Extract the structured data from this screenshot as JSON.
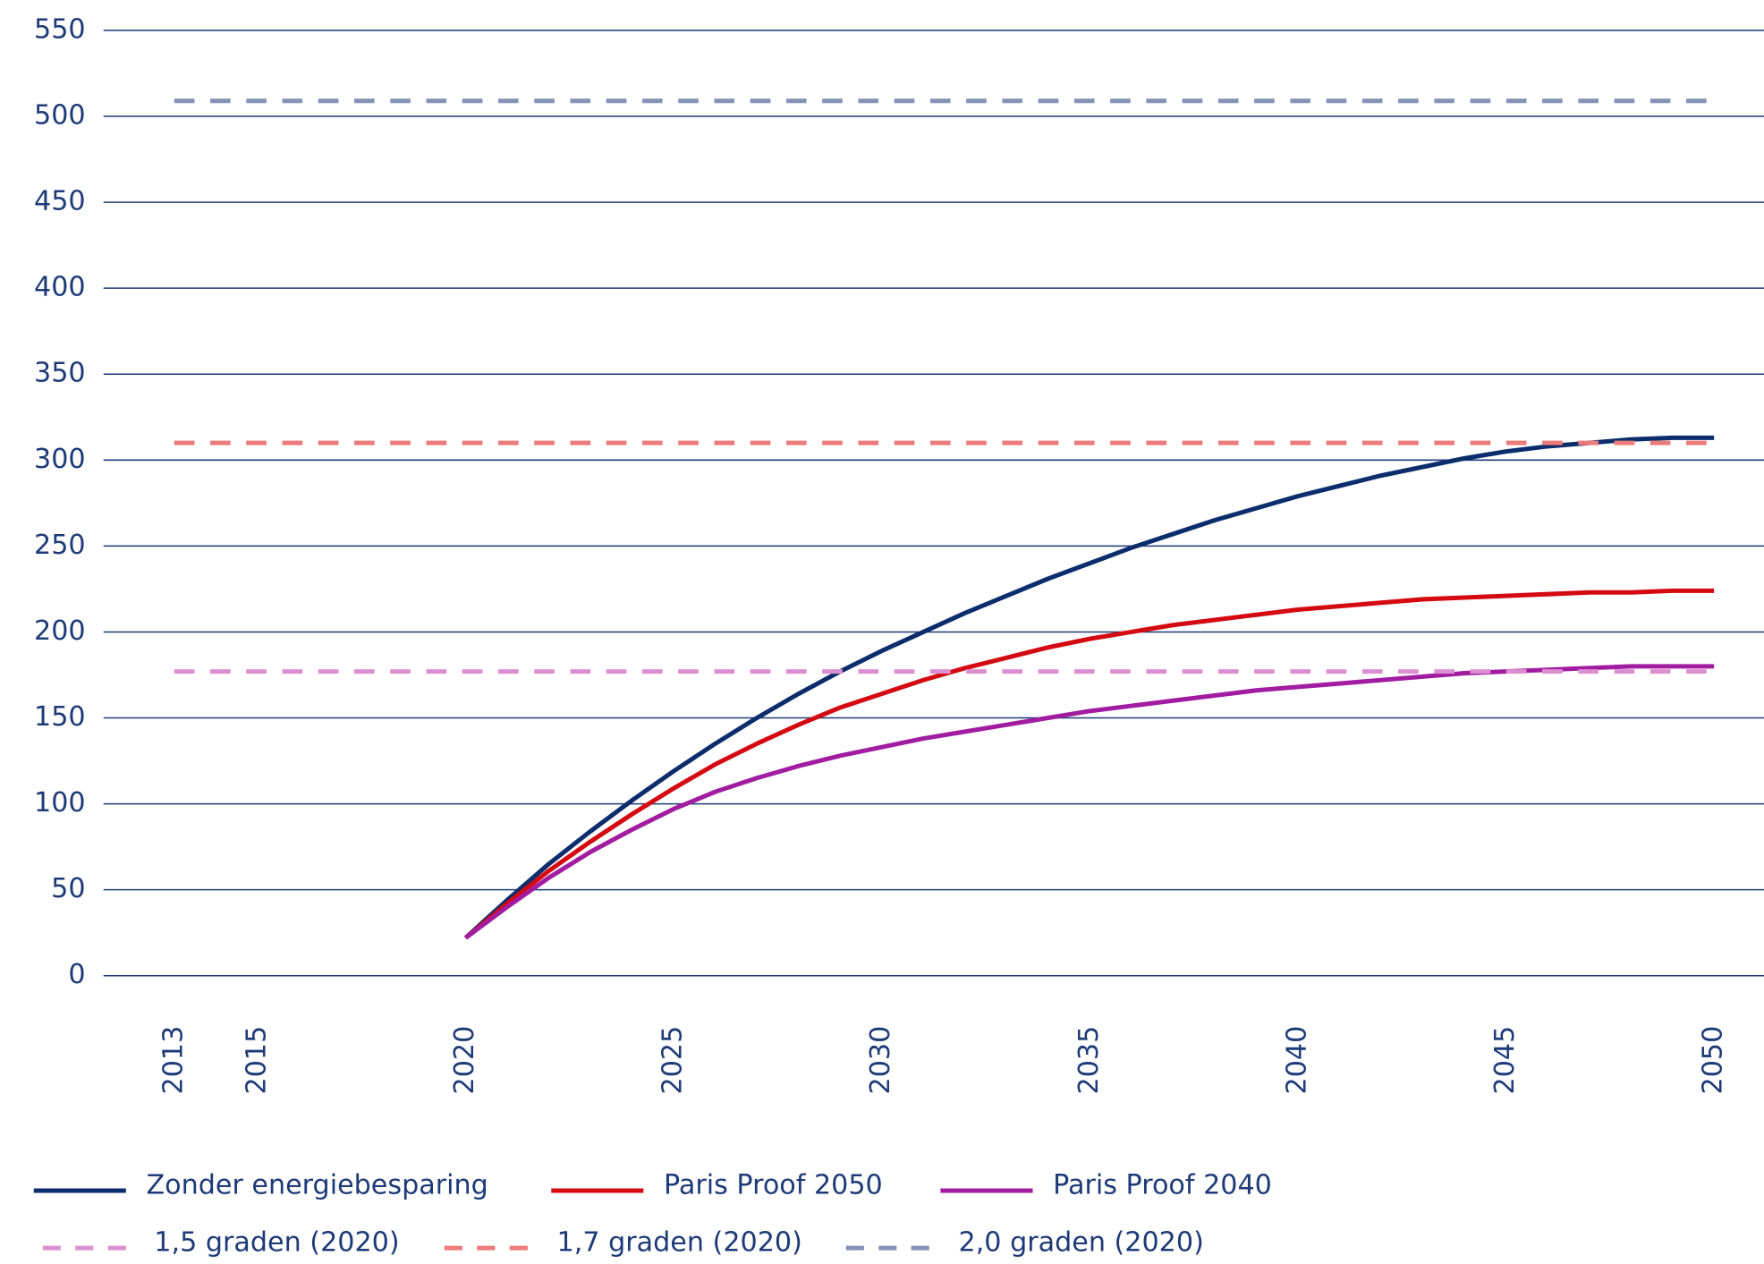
{
  "chart_data": {
    "type": "line",
    "xlim": [
      2011.3,
      2051.2
    ],
    "xticks": [
      2013,
      2015,
      2020,
      2025,
      2030,
      2035,
      2040,
      2045,
      2050
    ],
    "ylim": [
      0,
      550
    ],
    "yticks": [
      0,
      50,
      100,
      150,
      200,
      250,
      300,
      350,
      400,
      450,
      500,
      550
    ],
    "grid": true,
    "series": [
      {
        "name": "Zonder energiebesparing",
        "color": "#0b2d6c",
        "dashed": false,
        "x": [
          2020,
          2021,
          2022,
          2023,
          2024,
          2025,
          2026,
          2027,
          2028,
          2029,
          2030,
          2031,
          2032,
          2033,
          2034,
          2035,
          2036,
          2037,
          2038,
          2039,
          2040,
          2041,
          2042,
          2043,
          2044,
          2045,
          2046,
          2047,
          2048,
          2049,
          2050
        ],
        "values": [
          22,
          44,
          65,
          84,
          102,
          119,
          135,
          150,
          164,
          177,
          189,
          200,
          211,
          221,
          231,
          240,
          249,
          257,
          265,
          272,
          279,
          285,
          291,
          296,
          301,
          305,
          308,
          310,
          312,
          313,
          313
        ]
      },
      {
        "name": "Paris Proof 2050",
        "color": "#d40a10",
        "dashed": false,
        "x": [
          2020,
          2021,
          2022,
          2023,
          2024,
          2025,
          2026,
          2027,
          2028,
          2029,
          2030,
          2031,
          2032,
          2033,
          2034,
          2035,
          2036,
          2037,
          2038,
          2039,
          2040,
          2041,
          2042,
          2043,
          2044,
          2045,
          2046,
          2047,
          2048,
          2049,
          2050
        ],
        "values": [
          22,
          42,
          61,
          78,
          94,
          109,
          123,
          135,
          146,
          156,
          164,
          172,
          179,
          185,
          191,
          196,
          200,
          204,
          207,
          210,
          213,
          215,
          217,
          219,
          220,
          221,
          222,
          223,
          223,
          224,
          224
        ]
      },
      {
        "name": "Paris Proof 2040",
        "color": "#a21ca2",
        "dashed": false,
        "x": [
          2020,
          2021,
          2022,
          2023,
          2024,
          2025,
          2026,
          2027,
          2028,
          2029,
          2030,
          2031,
          2032,
          2033,
          2034,
          2035,
          2036,
          2037,
          2038,
          2039,
          2040,
          2041,
          2042,
          2043,
          2044,
          2045,
          2046,
          2047,
          2048,
          2049,
          2050
        ],
        "values": [
          22,
          40,
          57,
          72,
          85,
          97,
          107,
          115,
          122,
          128,
          133,
          138,
          142,
          146,
          150,
          154,
          157,
          160,
          163,
          166,
          168,
          170,
          172,
          174,
          176,
          177,
          178,
          179,
          180,
          180,
          180
        ]
      },
      {
        "name": "1,5 graden (2020)",
        "color": "#db8fd0",
        "dashed": true,
        "x": [
          2013,
          2050
        ],
        "values": [
          177,
          177
        ]
      },
      {
        "name": "1,7 graden (2020)",
        "color": "#ec7a78",
        "dashed": true,
        "x": [
          2013,
          2050
        ],
        "values": [
          310,
          310
        ]
      },
      {
        "name": "2,0 graden (2020)",
        "color": "#8392b8",
        "dashed": true,
        "x": [
          2013,
          2050
        ],
        "values": [
          509,
          509
        ]
      }
    ]
  }
}
